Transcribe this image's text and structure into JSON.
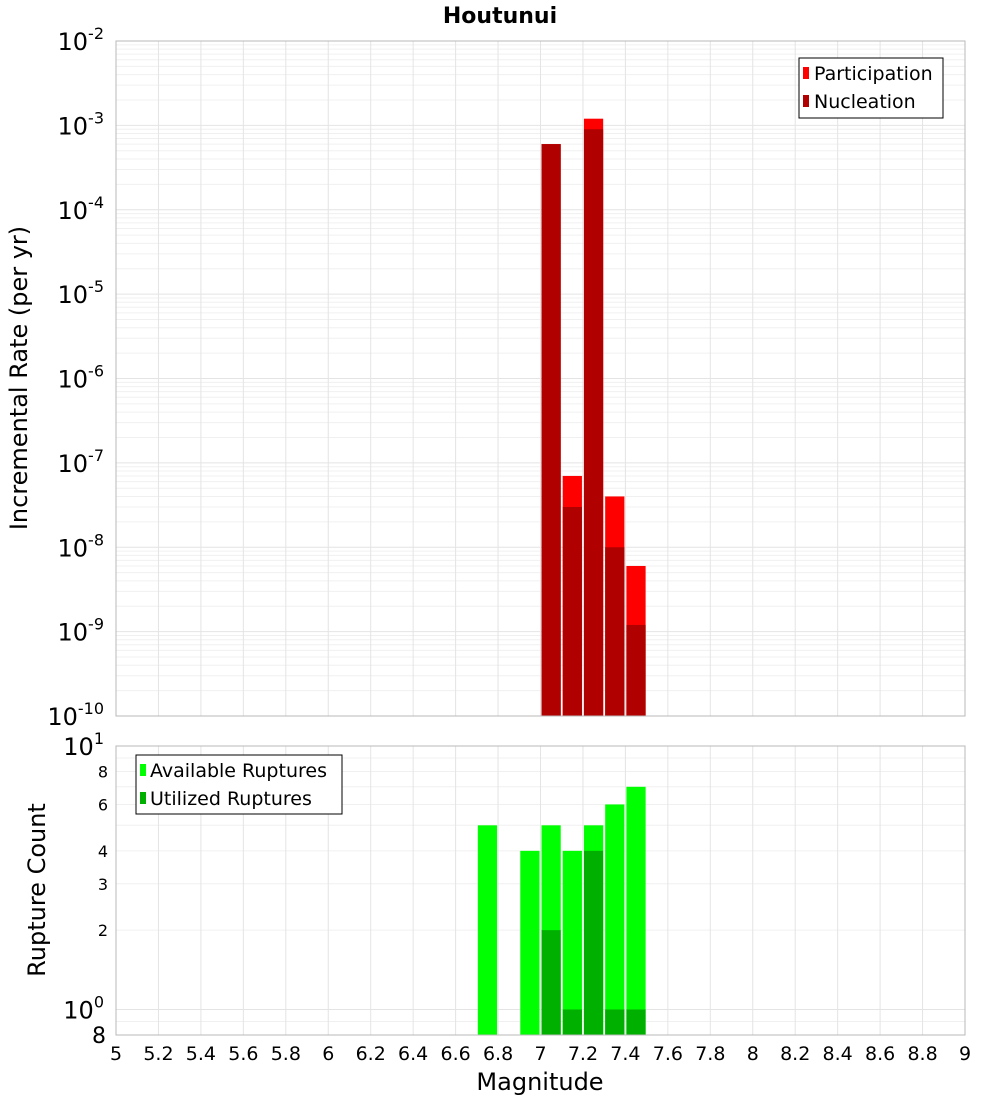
{
  "chart_data": [
    {
      "type": "bar",
      "title": "Houtunui",
      "ylabel": "Incremental Rate (per yr)",
      "yscale": "log",
      "ylim": [
        1e-10,
        0.01
      ],
      "xlim": [
        5,
        9
      ],
      "bar_width": 0.1,
      "y_tick_base": "10",
      "y_tick_exponents": [
        "-10",
        "-9",
        "-8",
        "-7",
        "-6",
        "-5",
        "-4",
        "-3",
        "-2"
      ],
      "legend_position": "top-right",
      "grid": true,
      "series": [
        {
          "name": "Participation",
          "color": "#ff0000",
          "x": [
            7.05,
            7.15,
            7.25,
            7.35,
            7.45
          ],
          "values": [
            0.0006,
            7e-08,
            0.0012,
            4e-08,
            6e-09
          ]
        },
        {
          "name": "Nucleation",
          "color": "#b00000",
          "x": [
            7.05,
            7.15,
            7.25,
            7.35,
            7.45
          ],
          "values": [
            0.0006,
            3e-08,
            0.0009,
            1e-08,
            1.2e-09
          ]
        }
      ]
    },
    {
      "type": "bar",
      "xlabel": "Magnitude",
      "ylabel": "Rupture Count",
      "yscale": "log",
      "ylim": [
        0.8,
        10
      ],
      "xlim": [
        5,
        9
      ],
      "bar_width": 0.1,
      "x_ticks": [
        "5",
        "5.2",
        "5.4",
        "5.6",
        "5.8",
        "6",
        "6.2",
        "6.4",
        "6.6",
        "6.8",
        "7",
        "7.2",
        "7.4",
        "7.6",
        "7.8",
        "8",
        "8.2",
        "8.4",
        "8.6",
        "8.8",
        "9"
      ],
      "y_major_ticks": [
        {
          "value": 1,
          "base": "10",
          "exp": "0"
        },
        {
          "value": 10,
          "base": "10",
          "exp": "1"
        }
      ],
      "y_minor_ticks": [
        {
          "value": 0.8,
          "label": "8"
        },
        {
          "value": 2,
          "label": "2"
        },
        {
          "value": 3,
          "label": "3"
        },
        {
          "value": 4,
          "label": "4"
        },
        {
          "value": 6,
          "label": "6"
        },
        {
          "value": 8,
          "label": "8"
        }
      ],
      "legend_position": "top-left",
      "grid": true,
      "series": [
        {
          "name": "Available Ruptures",
          "color": "#00ff00",
          "x": [
            6.75,
            6.95,
            7.05,
            7.15,
            7.25,
            7.35,
            7.45
          ],
          "values": [
            5,
            4,
            5,
            4,
            5,
            6,
            7
          ]
        },
        {
          "name": "Utilized Ruptures",
          "color": "#00b000",
          "x": [
            7.05,
            7.15,
            7.25,
            7.35,
            7.45
          ],
          "values": [
            2,
            1,
            4,
            1,
            1
          ]
        }
      ]
    }
  ]
}
